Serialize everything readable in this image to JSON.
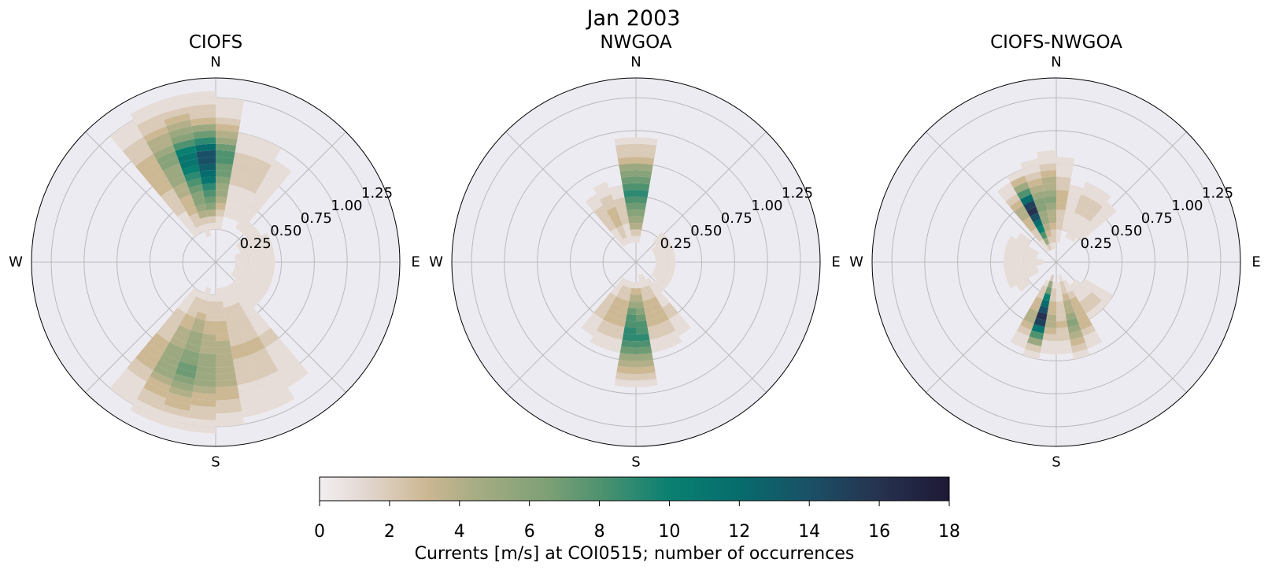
{
  "figure": {
    "title": "Jan 2003",
    "colorbar_label": "Currents [m/s] at COI0515; number of occurrences"
  },
  "colors": {
    "background": "#ffffff",
    "polar_face": "#edebf2",
    "grid": "#b9b9b9",
    "spine": "#000000"
  },
  "chart_data": [
    {
      "type": "polar-bar",
      "title": "CIOFS",
      "direction_labels": [
        "N",
        "E",
        "S",
        "W"
      ],
      "radial_ticks": [
        0.25,
        0.5,
        0.75,
        1.0,
        1.25
      ],
      "radial_tick_labels": [
        "0.25",
        "0.50",
        "0.75",
        "1.00",
        "1.25"
      ],
      "rlim": [
        0,
        1.4
      ],
      "direction_bins": 36,
      "speed_bin_width": 0.05,
      "lobes": [
        {
          "dir": 345,
          "spread": 30,
          "peak": 7.5,
          "rmin": 0.2,
          "rpeak": 0.85,
          "rmax": 1.39
        },
        {
          "dir": 355,
          "spread": 15,
          "peak": 9.0,
          "rmin": 0.3,
          "rpeak": 0.8,
          "rmax": 1.1
        },
        {
          "dir": 195,
          "spread": 30,
          "peak": 7.0,
          "rmin": 0.2,
          "rpeak": 0.85,
          "rmax": 1.39
        },
        {
          "dir": 160,
          "spread": 25,
          "peak": 3.0,
          "rmin": 0.2,
          "rpeak": 0.7,
          "rmax": 1.39
        },
        {
          "dir": 20,
          "spread": 20,
          "peak": 2.5,
          "rmin": 0.3,
          "rpeak": 0.8,
          "rmax": 1.1
        },
        {
          "dir": 100,
          "spread": 90,
          "peak": 1.2,
          "rmin": 0.05,
          "rpeak": 0.35,
          "rmax": 0.6
        }
      ]
    },
    {
      "type": "polar-bar",
      "title": "NWGOA",
      "direction_labels": [
        "N",
        "E",
        "S",
        "W"
      ],
      "radial_ticks": [
        0.25,
        0.5,
        0.75,
        1.0,
        1.25
      ],
      "radial_tick_labels": [
        "0.25",
        "0.50",
        "0.75",
        "1.00",
        "1.25"
      ],
      "rlim": [
        0,
        1.4
      ],
      "direction_bins": 36,
      "speed_bin_width": 0.05,
      "lobes": [
        {
          "dir": 0,
          "spread": 12,
          "peak": 12.5,
          "rmin": 0.15,
          "rpeak": 0.55,
          "rmax": 1.0
        },
        {
          "dir": 180,
          "spread": 12,
          "peak": 11.5,
          "rmin": 0.15,
          "rpeak": 0.6,
          "rmax": 1.0
        },
        {
          "dir": 335,
          "spread": 20,
          "peak": 3.5,
          "rmin": 0.1,
          "rpeak": 0.4,
          "rmax": 0.7
        },
        {
          "dir": 160,
          "spread": 22,
          "peak": 4.0,
          "rmin": 0.1,
          "rpeak": 0.45,
          "rmax": 0.75
        },
        {
          "dir": 200,
          "spread": 25,
          "peak": 4.0,
          "rmin": 0.1,
          "rpeak": 0.45,
          "rmax": 0.75
        },
        {
          "dir": 90,
          "spread": 90,
          "peak": 1.0,
          "rmin": 0.05,
          "rpeak": 0.25,
          "rmax": 0.4
        }
      ]
    },
    {
      "type": "polar-bar",
      "title": "CIOFS-NWGOA",
      "direction_labels": [
        "N",
        "E",
        "S",
        "W"
      ],
      "radial_ticks": [
        0.25,
        0.5,
        0.75,
        1.0,
        1.25
      ],
      "radial_tick_labels": [
        "0.25",
        "0.50",
        "0.75",
        "1.00",
        "1.25"
      ],
      "rlim": [
        0,
        1.4
      ],
      "direction_bins": 36,
      "speed_bin_width": 0.05,
      "lobes": [
        {
          "dir": 335,
          "spread": 12,
          "peak": 17.5,
          "rmin": 0.1,
          "rpeak": 0.45,
          "rmax": 0.75
        },
        {
          "dir": 195,
          "spread": 12,
          "peak": 17.0,
          "rmin": 0.1,
          "rpeak": 0.45,
          "rmax": 0.75
        },
        {
          "dir": 355,
          "spread": 15,
          "peak": 6.0,
          "rmin": 0.1,
          "rpeak": 0.5,
          "rmax": 0.9
        },
        {
          "dir": 165,
          "spread": 15,
          "peak": 6.0,
          "rmin": 0.1,
          "rpeak": 0.5,
          "rmax": 0.8
        },
        {
          "dir": 30,
          "spread": 30,
          "peak": 2.0,
          "rmin": 0.15,
          "rpeak": 0.5,
          "rmax": 0.75
        },
        {
          "dir": 140,
          "spread": 25,
          "peak": 2.0,
          "rmin": 0.15,
          "rpeak": 0.4,
          "rmax": 0.6
        },
        {
          "dir": 270,
          "spread": 50,
          "peak": 1.5,
          "rmin": 0.05,
          "rpeak": 0.3,
          "rmax": 0.5
        }
      ]
    }
  ],
  "colorbar": {
    "vmin": 0,
    "vmax": 18,
    "ticks": [
      0,
      2,
      4,
      6,
      8,
      10,
      12,
      14,
      16,
      18
    ],
    "tick_labels": [
      "0",
      "2",
      "4",
      "6",
      "8",
      "10",
      "12",
      "14",
      "16",
      "18"
    ],
    "stops": [
      {
        "v": 0,
        "color": "#f2eff1"
      },
      {
        "v": 1.3,
        "color": "#e3d7d1"
      },
      {
        "v": 3.0,
        "color": "#cdb894"
      },
      {
        "v": 4.5,
        "color": "#a6ac83"
      },
      {
        "v": 6.5,
        "color": "#7ea075"
      },
      {
        "v": 8.0,
        "color": "#4f9270"
      },
      {
        "v": 10.0,
        "color": "#0a8071"
      },
      {
        "v": 12.0,
        "color": "#066c6c"
      },
      {
        "v": 14.0,
        "color": "#1a5066"
      },
      {
        "v": 16.0,
        "color": "#26324f"
      },
      {
        "v": 18.0,
        "color": "#1d1936"
      }
    ]
  }
}
